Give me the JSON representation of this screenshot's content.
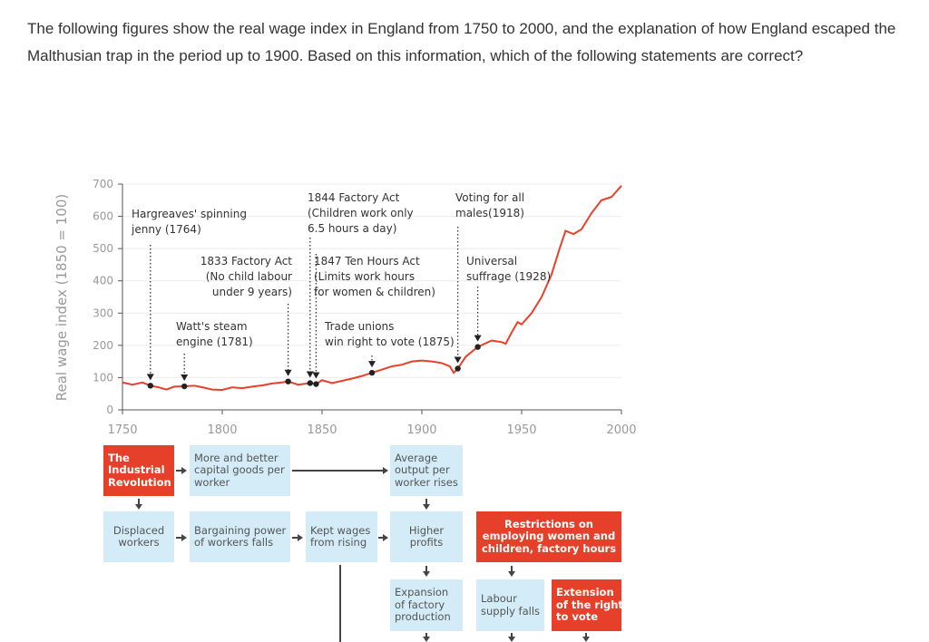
{
  "question": "The following figures show the real wage index in England from 1750 to 2000, and the explanation of how England escaped the Malthusian trap in the period up to 1900. Based on this information, which of the following statements are correct?",
  "chart_data": {
    "type": "line",
    "ylabel": "Real wage index (1850 = 100)",
    "xlabel": "",
    "xlim": [
      1750,
      2000
    ],
    "ylim": [
      0,
      700
    ],
    "xticks": [
      1750,
      1800,
      1850,
      1900,
      1950,
      2000
    ],
    "yticks": [
      0,
      100,
      200,
      300,
      400,
      500,
      600,
      700
    ],
    "grid": "horizontal",
    "line_color": "#e8402a",
    "x": [
      1750,
      1755,
      1760,
      1764,
      1768,
      1772,
      1776,
      1781,
      1786,
      1790,
      1795,
      1800,
      1805,
      1810,
      1815,
      1820,
      1825,
      1830,
      1833,
      1838,
      1844,
      1847,
      1850,
      1855,
      1860,
      1865,
      1870,
      1875,
      1880,
      1885,
      1890,
      1895,
      1900,
      1905,
      1910,
      1914,
      1916,
      1918,
      1922,
      1928,
      1935,
      1940,
      1942,
      1945,
      1948,
      1950,
      1955,
      1960,
      1965,
      1969,
      1972,
      1976,
      1980,
      1985,
      1990,
      1995,
      2000
    ],
    "y": [
      85,
      78,
      85,
      75,
      70,
      63,
      72,
      73,
      75,
      70,
      63,
      62,
      70,
      67,
      72,
      76,
      82,
      85,
      88,
      78,
      83,
      80,
      92,
      83,
      90,
      97,
      105,
      115,
      125,
      135,
      140,
      150,
      153,
      150,
      145,
      135,
      115,
      128,
      165,
      195,
      215,
      210,
      205,
      240,
      272,
      265,
      300,
      350,
      420,
      500,
      555,
      545,
      560,
      610,
      650,
      660,
      695
    ],
    "annotations": [
      {
        "year": 1764,
        "value": 75,
        "lines": [
          "Hargreaves' spinning",
          "jenny (1764)"
        ]
      },
      {
        "year": 1781,
        "value": 73,
        "lines": [
          "Watt's steam",
          "engine (1781)"
        ]
      },
      {
        "year": 1833,
        "value": 88,
        "lines": [
          "1833 Factory Act",
          "(No child labour",
          "under 9 years)"
        ]
      },
      {
        "year": 1844,
        "value": 83,
        "lines": [
          "1844 Factory Act",
          "(Children work only",
          "6.5 hours a day)"
        ]
      },
      {
        "year": 1847,
        "value": 80,
        "lines": [
          "1847 Ten Hours Act",
          "(Limits work hours",
          "for women & children)"
        ]
      },
      {
        "year": 1875,
        "value": 115,
        "lines": [
          "Trade unions",
          "win right to vote (1875)"
        ]
      },
      {
        "year": 1918,
        "value": 128,
        "lines": [
          "Voting for all",
          "males(1918)"
        ]
      },
      {
        "year": 1928,
        "value": 195,
        "lines": [
          "Universal",
          "suffrage (1928)"
        ]
      }
    ]
  },
  "diagram": {
    "colors": {
      "highlight": "#e6402a",
      "box": "#d3ecf7"
    },
    "boxes": [
      {
        "id": "industrial-revolution",
        "text": "The\nIndustrial\nRevolution",
        "red": true
      },
      {
        "id": "capital-goods",
        "text": "More and better\ncapital goods per\nworker"
      },
      {
        "id": "average-output",
        "text": "Average\noutput per\nworker rises"
      },
      {
        "id": "displaced-workers",
        "text": "Displaced\nworkers"
      },
      {
        "id": "bargaining-power",
        "text": "Bargaining power\nof workers falls"
      },
      {
        "id": "kept-wages",
        "text": "Kept wages\nfrom rising"
      },
      {
        "id": "higher-profits",
        "text": "Higher\nprofits"
      },
      {
        "id": "restrictions",
        "text": "Restrictions on\nemploying women and\nchildren, factory hours",
        "red": true
      },
      {
        "id": "expansion",
        "text": "Expansion\nof factory\nproduction"
      },
      {
        "id": "labour-supply",
        "text": "Labour\nsupply falls"
      },
      {
        "id": "extension-vote",
        "text": "Extension\nof the right\nto vote",
        "red": true
      }
    ]
  }
}
